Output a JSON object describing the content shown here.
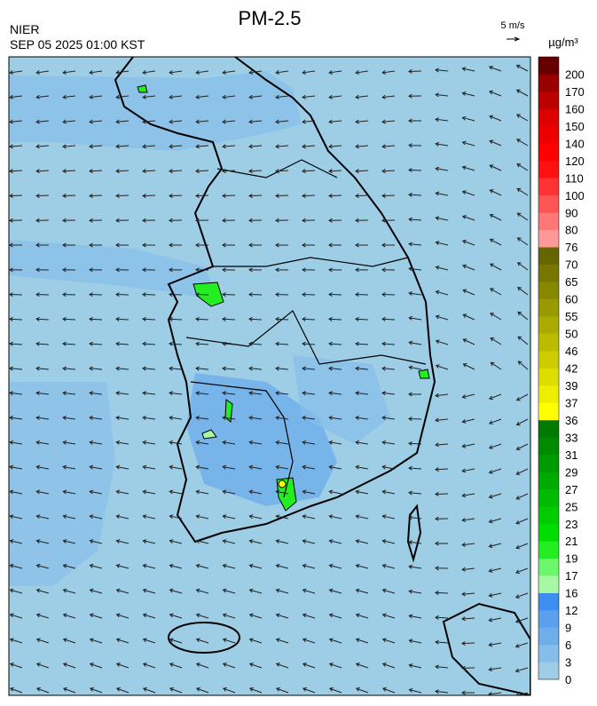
{
  "header": {
    "title": "PM-2.5",
    "agency": "NIER",
    "timestamp": "SEP 05 2025 01:00 KST",
    "wind_scale": "5 m/s"
  },
  "colorbar": {
    "unit": "µg/m³",
    "labels": [
      0,
      3,
      6,
      9,
      12,
      16,
      17,
      19,
      21,
      23,
      25,
      27,
      29,
      31,
      33,
      36,
      37,
      39,
      42,
      46,
      50,
      55,
      60,
      65,
      70,
      76,
      80,
      90,
      100,
      110,
      120,
      140,
      150,
      160,
      170,
      200
    ],
    "colors": [
      "#9dcee6",
      "#86bdea",
      "#6eaeeb",
      "#5aa0ee",
      "#3d8ef0",
      "#a6f7a6",
      "#6cf66c",
      "#22ee22",
      "#00dd00",
      "#00cc00",
      "#00bb00",
      "#00aa00",
      "#009a00",
      "#008a00",
      "#007a00",
      "#ffff00",
      "#eeee00",
      "#dddd00",
      "#cccc00",
      "#bbbb00",
      "#aaaa00",
      "#999900",
      "#888800",
      "#777700",
      "#666600",
      "#ff9999",
      "#ff7777",
      "#ff5555",
      "#ff3333",
      "#ff1111",
      "#ff0000",
      "#ee0000",
      "#dd0000",
      "#bb0000",
      "#990000",
      "#660000"
    ]
  }
}
